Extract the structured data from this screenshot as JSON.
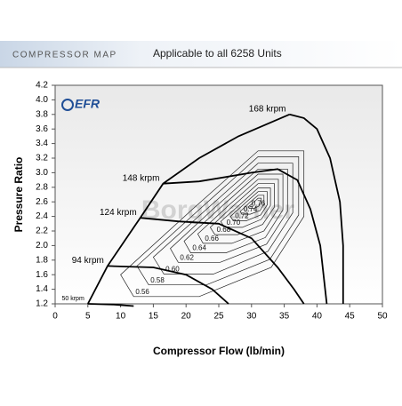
{
  "chart_data": {
    "type": "line",
    "header": "COMPRESSOR MAP",
    "title": "Applicable to all 6258 Units",
    "logo": "EFR",
    "watermark": "BorgWarner",
    "xlabel": "Compressor Flow (lb/min)",
    "ylabel": "Pressure Ratio",
    "xlim": [
      0,
      50
    ],
    "ylim": [
      1.2,
      4.2
    ],
    "xticks": [
      0,
      5,
      10,
      15,
      20,
      25,
      30,
      35,
      40,
      45,
      50
    ],
    "yticks": [
      1.2,
      1.4,
      1.6,
      1.8,
      {
        "value": 2,
        "label": "2.0"
      },
      2.2,
      2.4,
      2.6,
      2.8,
      {
        "value": 3,
        "label": "3.0"
      },
      3.2,
      3.4,
      3.6,
      3.8,
      {
        "value": 4,
        "label": "4.0"
      },
      4.2
    ],
    "surge_line": {
      "color": "#000000",
      "x": [
        5,
        8,
        13,
        16.5,
        22,
        28,
        35.8
      ],
      "values": [
        1.2,
        1.72,
        2.38,
        2.85,
        3.2,
        3.5,
        3.8
      ]
    },
    "speed_lines": [
      {
        "name": "168 krpm",
        "color": "#000000",
        "x": [
          35.8,
          38,
          40,
          42,
          43.5,
          44,
          44
        ],
        "values": [
          3.8,
          3.75,
          3.6,
          3.2,
          2.6,
          2.0,
          1.2
        ]
      },
      {
        "name": "148 krpm",
        "color": "#000000",
        "x": [
          16.5,
          22,
          30,
          34,
          37,
          39,
          40.5,
          41.5
        ],
        "values": [
          2.85,
          2.88,
          3.0,
          3.05,
          2.9,
          2.5,
          2.0,
          1.2
        ]
      },
      {
        "name": "124 krpm",
        "color": "#000000",
        "x": [
          13,
          19,
          25,
          30,
          34,
          36.5,
          38
        ],
        "values": [
          2.38,
          2.33,
          2.3,
          2.1,
          1.7,
          1.4,
          1.2
        ]
      },
      {
        "name": "94 krpm",
        "color": "#000000",
        "x": [
          8,
          15,
          20,
          24,
          26.5
        ],
        "values": [
          1.72,
          1.7,
          1.6,
          1.4,
          1.2
        ]
      },
      {
        "name": "50 krpm",
        "color": "#000000",
        "x": [
          5,
          9,
          12
        ],
        "values": [
          1.2,
          1.19,
          1.17
        ]
      }
    ],
    "efficiency_contours": [
      {
        "name": "0.56",
        "color": "#222222",
        "x": [
          12,
          22,
          33,
          38,
          38,
          31,
          21,
          10
        ],
        "values": [
          1.3,
          1.3,
          1.7,
          2.4,
          3.3,
          3.3,
          2.5,
          1.6
        ]
      },
      {
        "name": "0.58",
        "color": "#222222",
        "x": [
          14.3,
          23.1,
          32.8,
          37.2,
          37.2,
          31,
          22.2,
          12.5
        ],
        "values": [
          1.46,
          1.46,
          1.81,
          2.42,
          3.22,
          3.22,
          2.51,
          1.72
        ]
      },
      {
        "name": "0.60",
        "color": "#222222",
        "x": [
          16.6,
          24.2,
          32.5,
          36.3,
          36.3,
          31,
          23.4,
          15
        ],
        "values": [
          1.61,
          1.61,
          1.92,
          2.45,
          3.13,
          3.13,
          2.52,
          1.84
        ]
      },
      {
        "name": "0.62",
        "color": "#222222",
        "x": [
          18.8,
          25.2,
          32.3,
          35.5,
          35.5,
          31,
          24.6,
          17.6
        ],
        "values": [
          1.77,
          1.77,
          2.02,
          2.47,
          3.05,
          3.05,
          2.54,
          1.96
        ]
      },
      {
        "name": "0.64",
        "color": "#222222",
        "x": [
          20.7,
          26.1,
          32.1,
          34.8,
          34.8,
          31,
          25.6,
          19.7
        ],
        "values": [
          1.9,
          1.9,
          2.11,
          2.49,
          2.98,
          2.98,
          2.55,
          2.06
        ]
      },
      {
        "name": "0.66",
        "color": "#222222",
        "x": [
          22.6,
          27,
          31.9,
          34.1,
          34.1,
          31,
          26.6,
          21.8
        ],
        "values": [
          2.03,
          2.03,
          2.2,
          2.51,
          2.91,
          2.91,
          2.56,
          2.16
        ]
      },
      {
        "name": "0.68",
        "color": "#222222",
        "x": [
          24.4,
          27.9,
          31.7,
          33.5,
          33.5,
          31,
          27.5,
          23.7
        ],
        "values": [
          2.15,
          2.15,
          2.29,
          2.53,
          2.85,
          2.85,
          2.57,
          2.25
        ]
      },
      {
        "name": "0.70",
        "color": "#222222",
        "x": [
          25.9,
          28.6,
          31.5,
          32.9,
          32.9,
          31,
          28.3,
          25.3
        ],
        "values": [
          2.25,
          2.25,
          2.36,
          2.55,
          2.79,
          2.79,
          2.57,
          2.33
        ]
      },
      {
        "name": "0.72",
        "color": "#222222",
        "x": [
          27.2,
          29.2,
          31.4,
          32.4,
          32.4,
          31,
          29,
          26.8
        ],
        "values": [
          2.34,
          2.34,
          2.42,
          2.56,
          2.74,
          2.74,
          2.58,
          2.4
        ]
      },
      {
        "name": "0.74",
        "color": "#222222",
        "x": [
          28.5,
          29.8,
          31.3,
          31.9,
          31.9,
          31,
          29.7,
          28.3
        ],
        "values": [
          2.43,
          2.43,
          2.48,
          2.57,
          2.69,
          2.69,
          2.59,
          2.47
        ]
      },
      {
        "name": "0.76",
        "color": "#222222",
        "x": [
          29.7,
          30.4,
          31.1,
          31.5,
          31.5,
          31,
          30.3,
          29.5
        ],
        "values": [
          2.51,
          2.51,
          2.54,
          2.59,
          2.65,
          2.65,
          2.59,
          2.53
        ]
      }
    ]
  }
}
